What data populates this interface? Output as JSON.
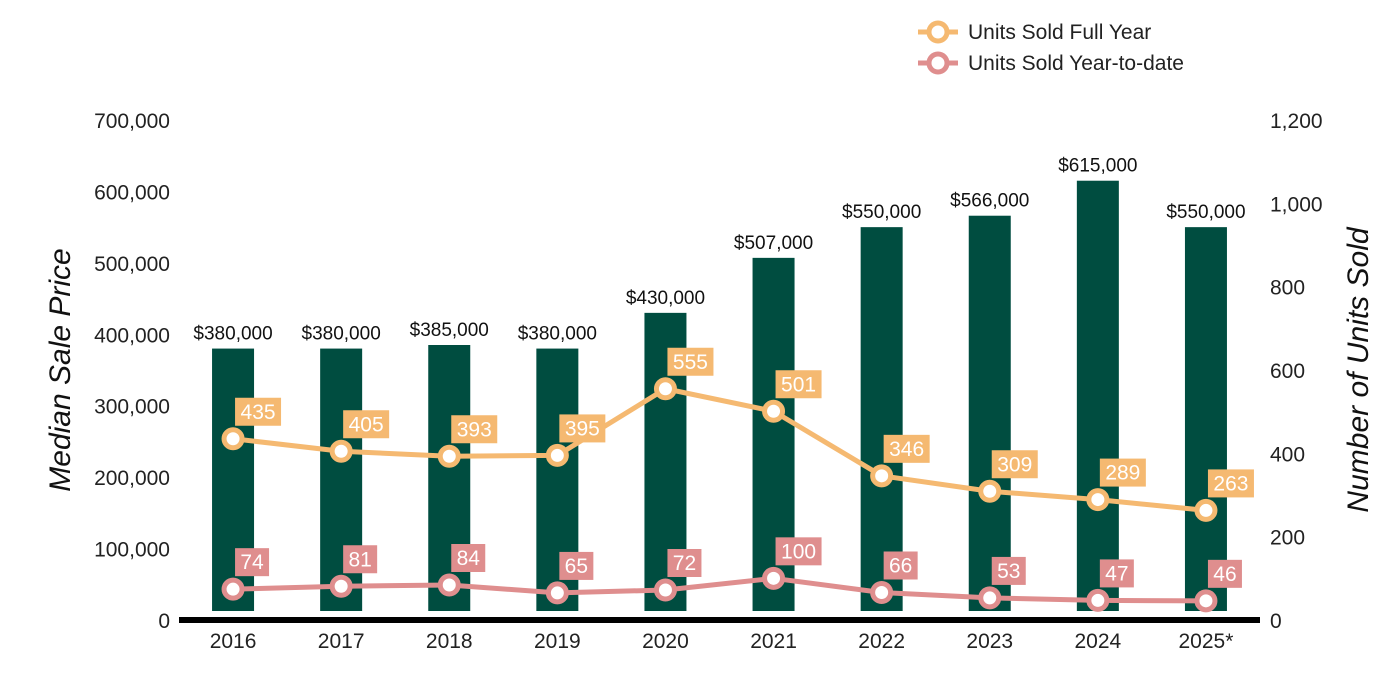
{
  "chart_data": {
    "type": "bar",
    "categories": [
      "2016",
      "2017",
      "2018",
      "2019",
      "2020",
      "2021",
      "2022",
      "2023",
      "2024",
      "2025*"
    ],
    "series": [
      {
        "chart": "bar",
        "axis": "left",
        "values": [
          380000,
          380000,
          385000,
          380000,
          430000,
          507000,
          550000,
          566000,
          615000,
          550000
        ],
        "labels": [
          "$380,000",
          "$380,000",
          "$385,000",
          "$380,000",
          "$430,000",
          "$507,000",
          "$550,000",
          "$566,000",
          "$615,000",
          "$550,000"
        ],
        "color": "#004d40"
      },
      {
        "name": "Units Sold Full Year",
        "chart": "line",
        "axis": "right",
        "values": [
          435,
          405,
          393,
          395,
          555,
          501,
          346,
          309,
          289,
          263
        ],
        "color": "#f5b971"
      },
      {
        "name": "Units Sold Year-to-date",
        "chart": "line",
        "axis": "right",
        "values": [
          74,
          81,
          84,
          65,
          72,
          100,
          66,
          53,
          47,
          46
        ],
        "color": "#df8e8e"
      }
    ],
    "ylabel": "Median Sale Price",
    "ylabel_right": "Number of Units Sold",
    "ylim": [
      0,
      700000
    ],
    "ylim_right": [
      0,
      1200
    ],
    "yticks": [
      "0",
      "100,000",
      "200,000",
      "300,000",
      "400,000",
      "500,000",
      "600,000",
      "700,000"
    ],
    "yticks_right": [
      "0",
      "200",
      "400",
      "600",
      "800",
      "1,000",
      "1,200"
    ],
    "grid": false,
    "legend_position": "top-right"
  }
}
